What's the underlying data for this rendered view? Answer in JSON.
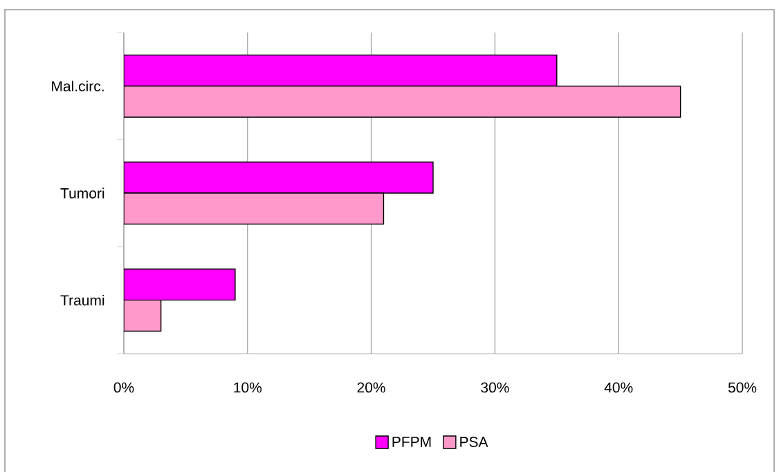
{
  "chart_data": {
    "type": "bar",
    "orientation": "horizontal",
    "categories": [
      "Mal.circ.",
      "Tumori",
      "Traumi"
    ],
    "series": [
      {
        "name": "PFPM",
        "color": "#ff00ff",
        "values": [
          35,
          25,
          9
        ]
      },
      {
        "name": "PSA",
        "color": "#ff99cc",
        "values": [
          45,
          21,
          3
        ]
      }
    ],
    "xlim": [
      0,
      50
    ],
    "xticks": [
      {
        "value": 0,
        "label": "0%"
      },
      {
        "value": 10,
        "label": "10%"
      },
      {
        "value": 20,
        "label": "20%"
      },
      {
        "value": 30,
        "label": "30%"
      },
      {
        "value": 40,
        "label": "40%"
      },
      {
        "value": 50,
        "label": "50%"
      }
    ],
    "grid": "x",
    "legend": "bottom"
  }
}
